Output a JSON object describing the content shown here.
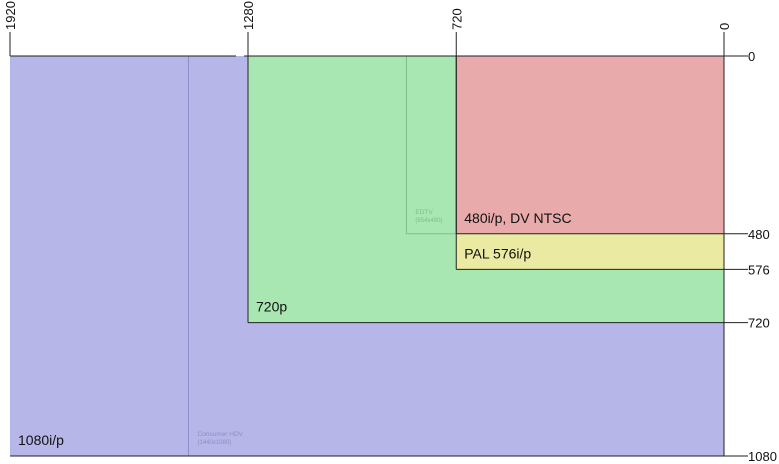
{
  "diagram": {
    "top_axis_labels": [
      {
        "text": "1920",
        "value": 1920
      },
      {
        "text": "1280",
        "value": 1280
      },
      {
        "text": "720",
        "value": 720
      },
      {
        "text": "0",
        "value": 0
      }
    ],
    "right_axis_labels": [
      {
        "text": "0",
        "value": 0
      },
      {
        "text": "480",
        "value": 480
      },
      {
        "text": "576",
        "value": 576
      },
      {
        "text": "720",
        "value": 720
      },
      {
        "text": "1080",
        "value": 1080
      }
    ],
    "regions": [
      {
        "key": "r1080",
        "label": "1080i/p",
        "width": 1920,
        "height": 1080,
        "color": "#b6b6e8"
      },
      {
        "key": "r720",
        "label": "720p",
        "width": 1280,
        "height": 720,
        "color": "#a8e6b2"
      },
      {
        "key": "r576",
        "label": "PAL 576i/p",
        "width": 720,
        "height": 576,
        "color": "#eaeaa2"
      },
      {
        "key": "r480",
        "label": "480i/p, DV NTSC",
        "width": 720,
        "height": 480,
        "color": "#e8aaaa"
      }
    ],
    "minor_regions": [
      {
        "key": "edtv",
        "label": "EDTV",
        "sublabel": "(854x480)",
        "width": 854,
        "height": 480,
        "color": "#7dbf8a"
      },
      {
        "key": "hdv",
        "label": "Consumer HDV",
        "sublabel": "(1440x1080)",
        "width": 1440,
        "height": 1080,
        "color": "#8e8ec8"
      }
    ]
  }
}
